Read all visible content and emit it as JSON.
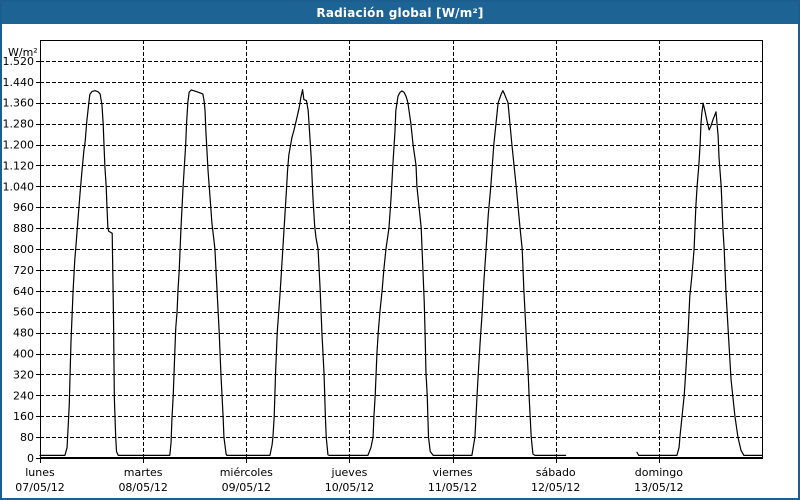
{
  "window": {
    "title": "Radiación global [W/m²]"
  },
  "colors": {
    "titlebar_bg": "#1d6394",
    "titlebar_text": "#ffffff",
    "window_border": "#1b5e8f",
    "plot_bg": "#ffffff",
    "grid": "#000000",
    "line": "#000000",
    "text": "#000000"
  },
  "chart_data": {
    "type": "line",
    "title": "Radiación global [W/m²]",
    "grid": "dashed",
    "legend_position": "none",
    "y_axis": {
      "unit_label": "W/m²",
      "min": 0,
      "max": 1600,
      "tick_step": 80,
      "tick_labels": [
        "0",
        "80",
        "160",
        "240",
        "320",
        "400",
        "480",
        "560",
        "640",
        "720",
        "800",
        "880",
        "960",
        "1.040",
        "1.120",
        "1.200",
        "1.280",
        "1.360",
        "1.440",
        "1.520"
      ]
    },
    "x_axis": {
      "hours_per_day": 24,
      "days": [
        {
          "name": "lunes",
          "date": "07/05/12"
        },
        {
          "name": "martes",
          "date": "08/05/12"
        },
        {
          "name": "miércoles",
          "date": "09/05/12"
        },
        {
          "name": "jueves",
          "date": "10/05/12"
        },
        {
          "name": "viernes",
          "date": "11/05/12"
        },
        {
          "name": "sábado",
          "date": "12/05/12"
        },
        {
          "name": "domingo",
          "date": "13/05/12"
        }
      ]
    },
    "series": [
      {
        "name": "Radiación global",
        "color": "#000000",
        "units": "W/m²",
        "segments": [
          [
            [
              0,
              10
            ],
            [
              5.8,
              10
            ],
            [
              6.3,
              40
            ],
            [
              6.8,
              200
            ],
            [
              7.2,
              440
            ],
            [
              7.7,
              640
            ],
            [
              8.1,
              760
            ],
            [
              8.4,
              820
            ],
            [
              8.8,
              905
            ],
            [
              9.3,
              1010
            ],
            [
              9.8,
              1105
            ],
            [
              10.2,
              1175
            ],
            [
              10.5,
              1210
            ],
            [
              10.9,
              1290
            ],
            [
              11.4,
              1365
            ],
            [
              11.6,
              1392
            ],
            [
              12.1,
              1403
            ],
            [
              12.8,
              1406
            ],
            [
              13.5,
              1402
            ],
            [
              14.0,
              1393
            ],
            [
              14.2,
              1372
            ],
            [
              14.4,
              1355
            ],
            [
              14.7,
              1280
            ],
            [
              14.9,
              1195
            ],
            [
              15.1,
              1115
            ],
            [
              15.4,
              1040
            ],
            [
              15.6,
              955
            ],
            [
              15.8,
              880
            ],
            [
              16.0,
              868
            ],
            [
              16.3,
              865
            ],
            [
              16.8,
              860
            ],
            [
              17.1,
              540
            ],
            [
              17.3,
              230
            ],
            [
              17.6,
              85
            ],
            [
              17.8,
              25
            ],
            [
              18.2,
              10
            ],
            [
              30.2,
              10
            ],
            [
              30.5,
              60
            ],
            [
              30.7,
              150
            ],
            [
              31.0,
              240
            ],
            [
              31.2,
              330
            ],
            [
              31.4,
              420
            ],
            [
              31.6,
              500
            ],
            [
              31.9,
              560
            ],
            [
              32.1,
              640
            ],
            [
              32.4,
              720
            ],
            [
              32.6,
              800
            ],
            [
              32.8,
              880
            ],
            [
              33.3,
              1040
            ],
            [
              33.9,
              1200
            ],
            [
              34.1,
              1280
            ],
            [
              34.4,
              1360
            ],
            [
              34.7,
              1400
            ],
            [
              35.2,
              1409
            ],
            [
              36.3,
              1403
            ],
            [
              37.2,
              1398
            ],
            [
              37.9,
              1393
            ],
            [
              38.2,
              1365
            ],
            [
              38.4,
              1330
            ],
            [
              38.6,
              1250
            ],
            [
              39.1,
              1100
            ],
            [
              39.6,
              990
            ],
            [
              40.0,
              900
            ],
            [
              40.5,
              830
            ],
            [
              40.7,
              800
            ],
            [
              41.2,
              640
            ],
            [
              41.7,
              480
            ],
            [
              42.1,
              320
            ],
            [
              42.6,
              160
            ],
            [
              42.8,
              80
            ],
            [
              43.3,
              15
            ],
            [
              43.5,
              10
            ],
            [
              53.5,
              10
            ],
            [
              54.0,
              50
            ],
            [
              54.2,
              80
            ],
            [
              54.5,
              160
            ],
            [
              54.8,
              320
            ],
            [
              55.2,
              480
            ],
            [
              55.9,
              640
            ],
            [
              56.5,
              800
            ],
            [
              57.1,
              960
            ],
            [
              57.4,
              1040
            ],
            [
              57.6,
              1100
            ],
            [
              57.9,
              1160
            ],
            [
              58.6,
              1225
            ],
            [
              59.1,
              1255
            ],
            [
              59.6,
              1290
            ],
            [
              60.3,
              1340
            ],
            [
              60.7,
              1380
            ],
            [
              61.1,
              1410
            ],
            [
              61.4,
              1372
            ],
            [
              62.0,
              1368
            ],
            [
              62.4,
              1330
            ],
            [
              62.6,
              1280
            ],
            [
              63.1,
              1150
            ],
            [
              63.5,
              1000
            ],
            [
              63.9,
              890
            ],
            [
              64.2,
              845
            ],
            [
              64.7,
              800
            ],
            [
              65.2,
              640
            ],
            [
              65.6,
              480
            ],
            [
              66.1,
              320
            ],
            [
              66.4,
              160
            ],
            [
              66.6,
              80
            ],
            [
              67.0,
              12
            ],
            [
              67.3,
              10
            ],
            [
              76.3,
              10
            ],
            [
              77.0,
              40
            ],
            [
              77.5,
              80
            ],
            [
              77.7,
              160
            ],
            [
              78.0,
              240
            ],
            [
              78.2,
              320
            ],
            [
              78.4,
              400
            ],
            [
              78.7,
              480
            ],
            [
              79.1,
              560
            ],
            [
              79.6,
              640
            ],
            [
              80.0,
              720
            ],
            [
              80.5,
              800
            ],
            [
              81.2,
              880
            ],
            [
              81.7,
              1000
            ],
            [
              82.1,
              1120
            ],
            [
              82.6,
              1250
            ],
            [
              82.8,
              1330
            ],
            [
              83.3,
              1385
            ],
            [
              83.8,
              1400
            ],
            [
              84.2,
              1405
            ],
            [
              84.7,
              1400
            ],
            [
              85.2,
              1383
            ],
            [
              85.6,
              1360
            ],
            [
              86.3,
              1280
            ],
            [
              86.8,
              1200
            ],
            [
              87.5,
              1120
            ],
            [
              87.7,
              1040
            ],
            [
              88.2,
              960
            ],
            [
              88.7,
              880
            ],
            [
              88.9,
              800
            ],
            [
              89.1,
              720
            ],
            [
              89.4,
              600
            ],
            [
              89.6,
              480
            ],
            [
              89.8,
              330
            ],
            [
              90.1,
              240
            ],
            [
              90.4,
              80
            ],
            [
              90.8,
              25
            ],
            [
              91.5,
              10
            ],
            [
              100.5,
              10
            ],
            [
              101.0,
              60
            ],
            [
              101.2,
              80
            ],
            [
              101.7,
              240
            ],
            [
              101.9,
              300
            ],
            [
              102.4,
              440
            ],
            [
              102.9,
              560
            ],
            [
              103.3,
              680
            ],
            [
              103.8,
              800
            ],
            [
              104.3,
              930
            ],
            [
              104.9,
              1040
            ],
            [
              105.6,
              1200
            ],
            [
              106.6,
              1360
            ],
            [
              107.3,
              1392
            ],
            [
              107.7,
              1406
            ],
            [
              108.0,
              1396
            ],
            [
              108.9,
              1360
            ],
            [
              109.8,
              1200
            ],
            [
              110.8,
              1040
            ],
            [
              111.7,
              880
            ],
            [
              112.2,
              800
            ],
            [
              112.6,
              640
            ],
            [
              113.1,
              480
            ],
            [
              113.6,
              320
            ],
            [
              113.8,
              240
            ],
            [
              114.3,
              80
            ],
            [
              114.7,
              15
            ],
            [
              115.2,
              10
            ],
            [
              122.3,
              10
            ]
          ],
          [
            [
              138.9,
              22
            ],
            [
              139.3,
              10
            ],
            [
              148.2,
              10
            ],
            [
              148.7,
              40
            ],
            [
              148.9,
              80
            ],
            [
              149.4,
              160
            ],
            [
              149.9,
              240
            ],
            [
              150.3,
              340
            ],
            [
              150.8,
              480
            ],
            [
              151.2,
              620
            ],
            [
              151.7,
              700
            ],
            [
              152.2,
              800
            ],
            [
              152.6,
              960
            ],
            [
              152.9,
              1040
            ],
            [
              153.3,
              1120
            ],
            [
              153.6,
              1200
            ],
            [
              153.8,
              1280
            ],
            [
              154.0,
              1320
            ],
            [
              154.3,
              1358
            ],
            [
              154.7,
              1330
            ],
            [
              155.2,
              1290
            ],
            [
              155.7,
              1256
            ],
            [
              156.1,
              1270
            ],
            [
              156.6,
              1295
            ],
            [
              157.3,
              1325
            ],
            [
              157.8,
              1230
            ],
            [
              158.0,
              1150
            ],
            [
              158.5,
              1040
            ],
            [
              158.9,
              880
            ],
            [
              159.2,
              800
            ],
            [
              159.6,
              640
            ],
            [
              160.3,
              440
            ],
            [
              160.8,
              300
            ],
            [
              161.7,
              160
            ],
            [
              162.4,
              80
            ],
            [
              163.1,
              30
            ],
            [
              163.8,
              10
            ],
            [
              167.9,
              10
            ]
          ]
        ]
      }
    ]
  }
}
